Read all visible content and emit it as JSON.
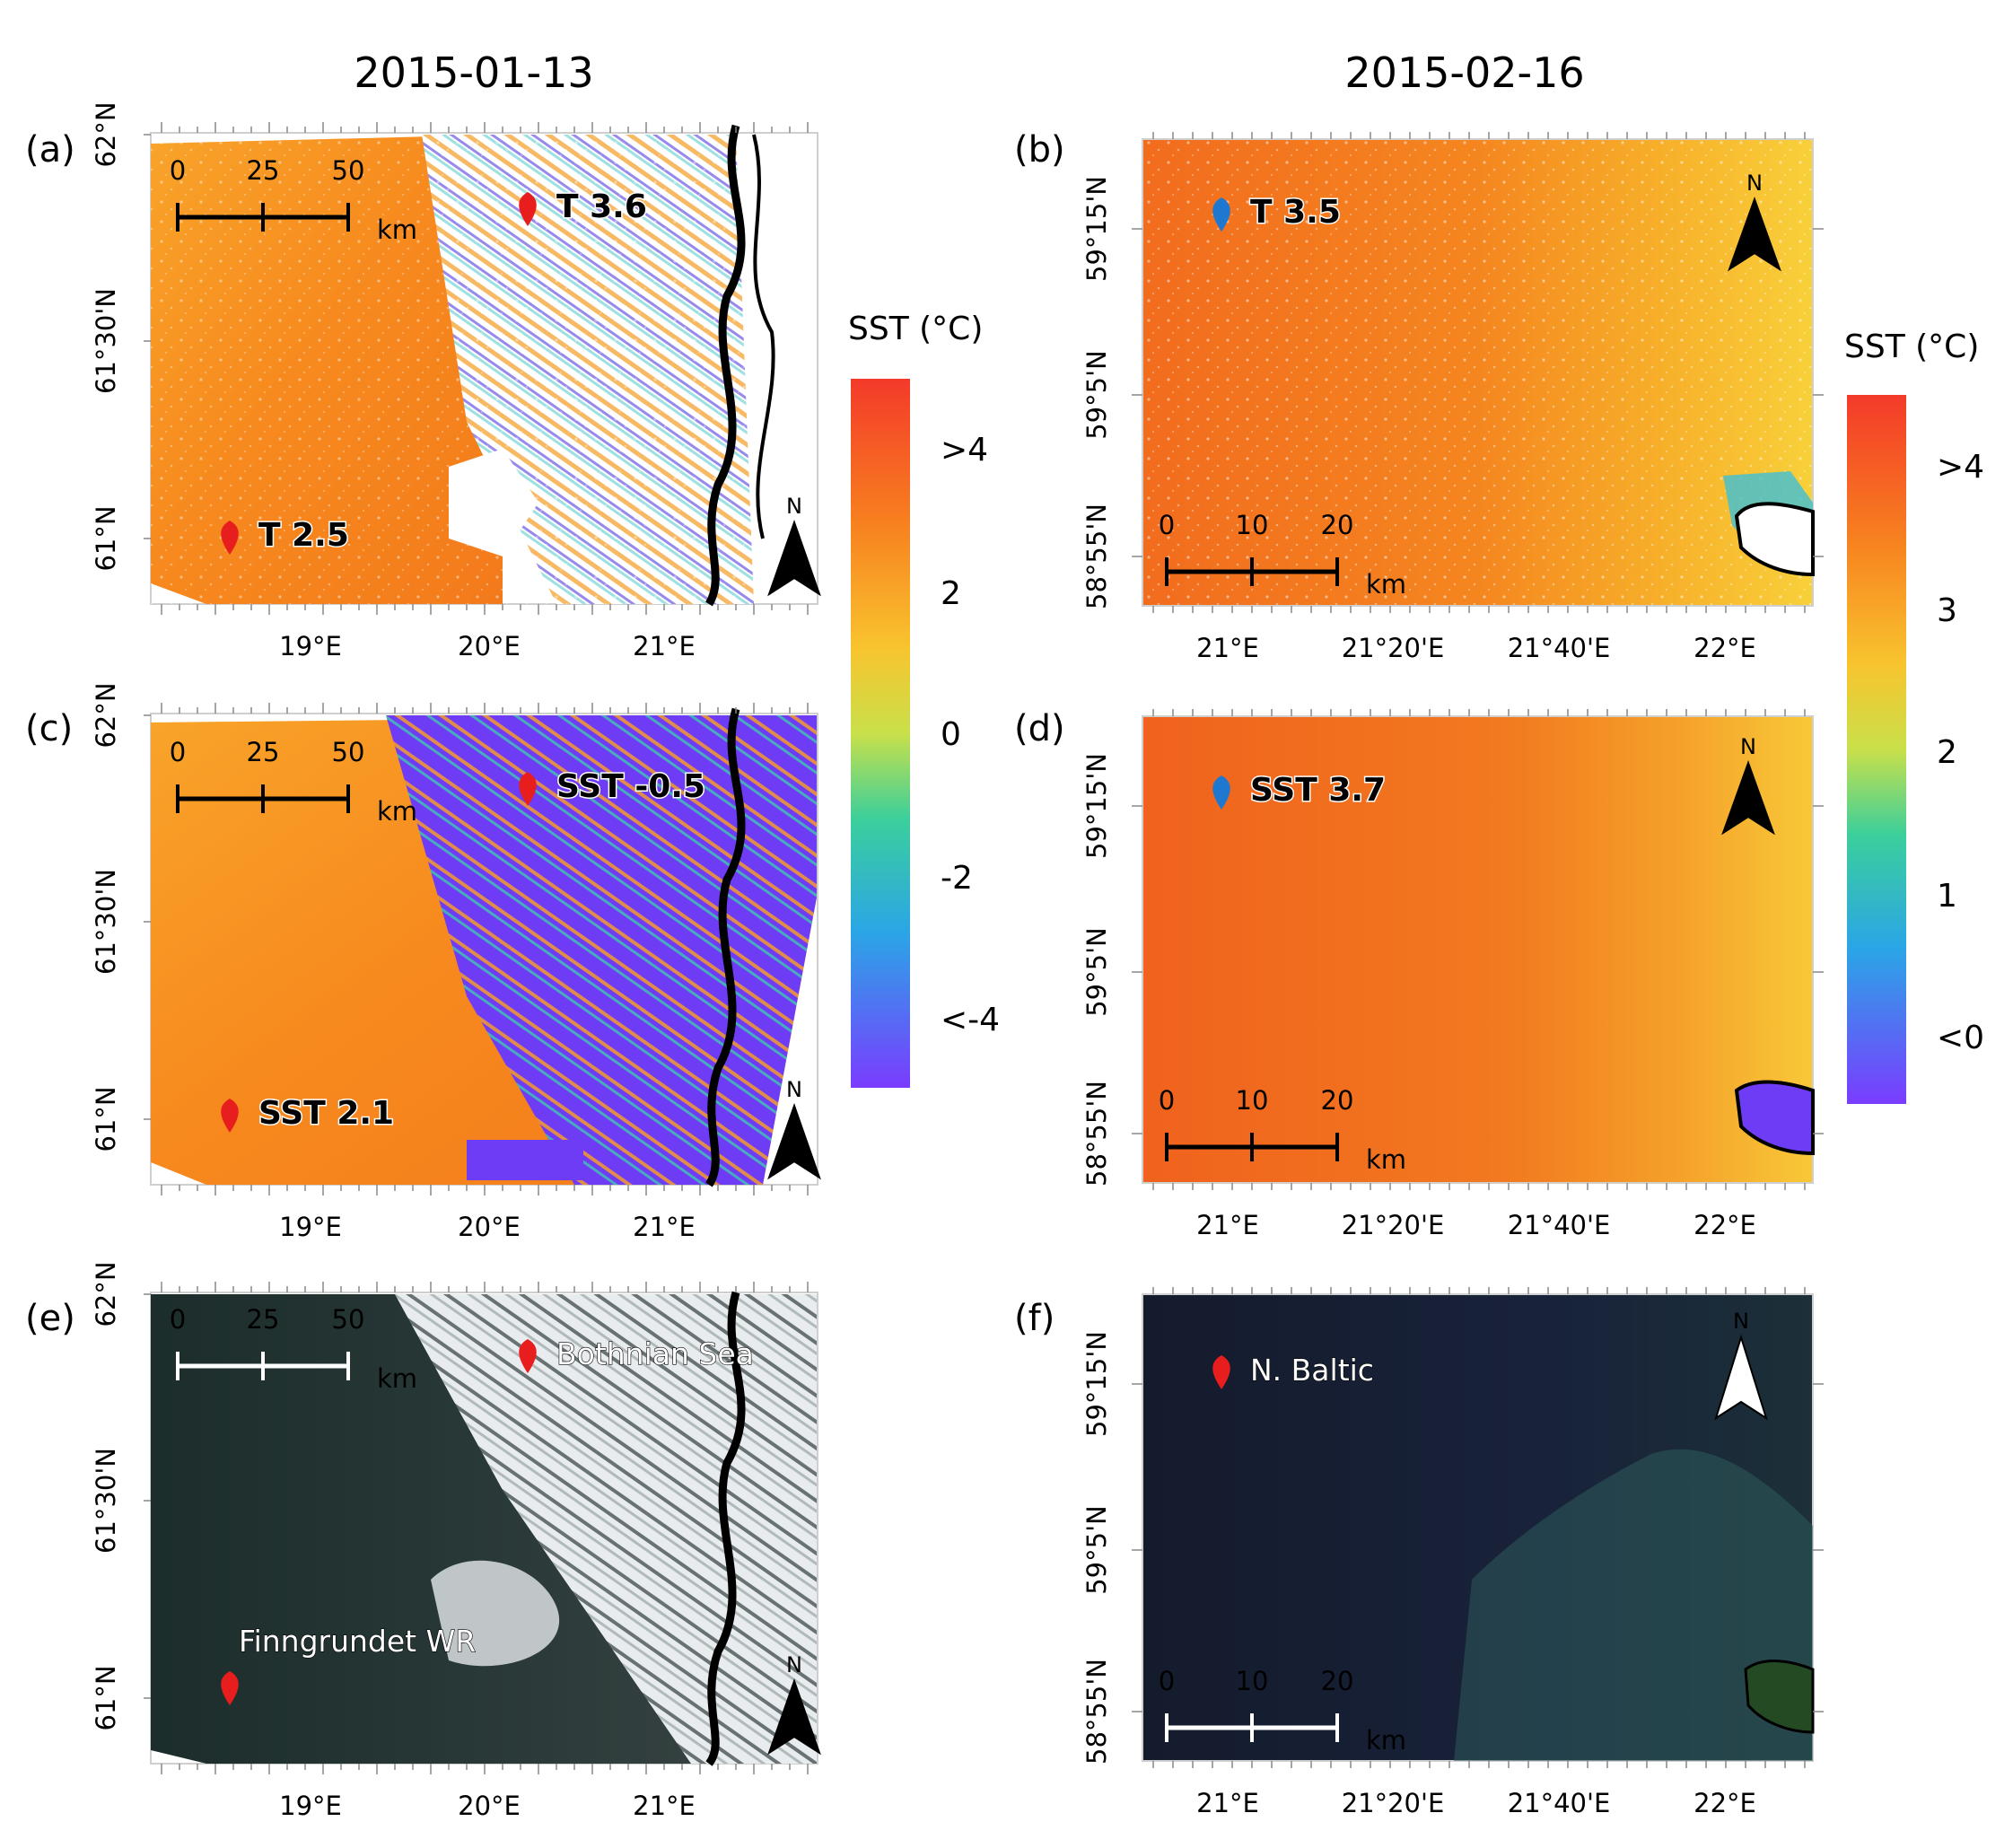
{
  "titles": {
    "left": "2015-01-13",
    "right": "2015-02-16"
  },
  "colors": {
    "sst_high": "#f2501e",
    "sst_mid": "#f7e22a",
    "sst_low": "#7a3cff",
    "marker_red": "#e81e1e",
    "marker_blue": "#1f78d0",
    "land": "#000000"
  },
  "left_axes": {
    "x_ticks": [
      "19°E",
      "20°E",
      "21°E"
    ],
    "y_ticks": [
      "62°N",
      "61°30'N",
      "61°N"
    ]
  },
  "right_axes": {
    "x_ticks": [
      "21°E",
      "21°20'E",
      "21°40'E",
      "22°E"
    ],
    "y_ticks": [
      "59°15'N",
      "59°5'N",
      "58°55'N"
    ]
  },
  "scalebar_left": {
    "ticks": [
      "0",
      "25",
      "50"
    ],
    "unit": "km"
  },
  "scalebar_right": {
    "ticks": [
      "0",
      "10",
      "20"
    ],
    "unit": "km"
  },
  "north_label": "N",
  "panels": {
    "a": {
      "label": "(a)",
      "m1": "T 3.6",
      "m2": "T 2.5"
    },
    "b": {
      "label": "(b)",
      "m1": "T 3.5"
    },
    "c": {
      "label": "(c)",
      "m1": "SST  -0.5",
      "m2": "SST 2.1"
    },
    "d": {
      "label": "(d)",
      "m1": "SST 3.7"
    },
    "e": {
      "label": "(e)",
      "m1": "Bothnian Sea",
      "m2": "Finngrundet WR"
    },
    "f": {
      "label": "(f)",
      "m1": "N. Baltic"
    }
  },
  "colorbar_left": {
    "title": "SST (°C)",
    "labels": [
      ">4",
      "2",
      "0",
      "-2",
      "<-4"
    ]
  },
  "colorbar_right": {
    "title": "SST (°C)",
    "labels": [
      ">4",
      "3",
      "2",
      "1",
      "<0"
    ]
  }
}
